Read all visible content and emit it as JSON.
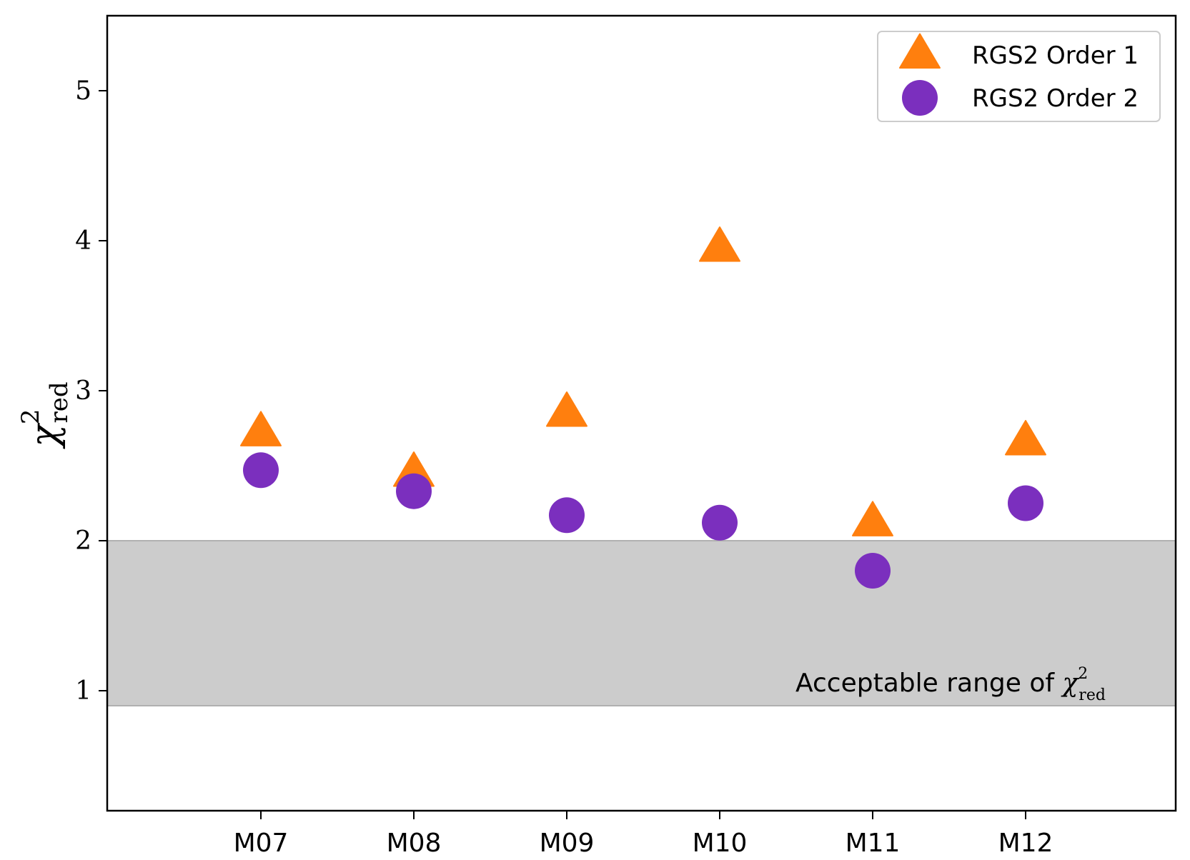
{
  "chart_data": {
    "type": "scatter",
    "categories": [
      "M07",
      "M08",
      "M09",
      "M10",
      "M11",
      "M12"
    ],
    "series": [
      {
        "name": "RGS2 Order 1",
        "marker": "triangle",
        "color": "#ff7f0e",
        "values": [
          2.72,
          2.45,
          2.85,
          3.95,
          2.12,
          2.66
        ]
      },
      {
        "name": "RGS2 Order 2",
        "marker": "circle",
        "color": "#7b2fbe",
        "values": [
          2.47,
          2.33,
          2.17,
          2.12,
          1.8,
          2.25
        ]
      }
    ],
    "ylabel": "χ²red",
    "ylabel_parts": {
      "base": "χ",
      "sup": "2",
      "sub": "red"
    },
    "ylim": [
      0.2,
      5.5
    ],
    "yticks": [
      1,
      2,
      3,
      4,
      5
    ],
    "grid": false,
    "legend_position": "top-right",
    "band": {
      "from": 0.9,
      "to": 2.0,
      "color": "#cccccc",
      "label": "Acceptable range of χ²red",
      "label_parts": {
        "text": "Acceptable range of ",
        "base": "χ",
        "sup": "2",
        "sub": "red"
      }
    }
  }
}
